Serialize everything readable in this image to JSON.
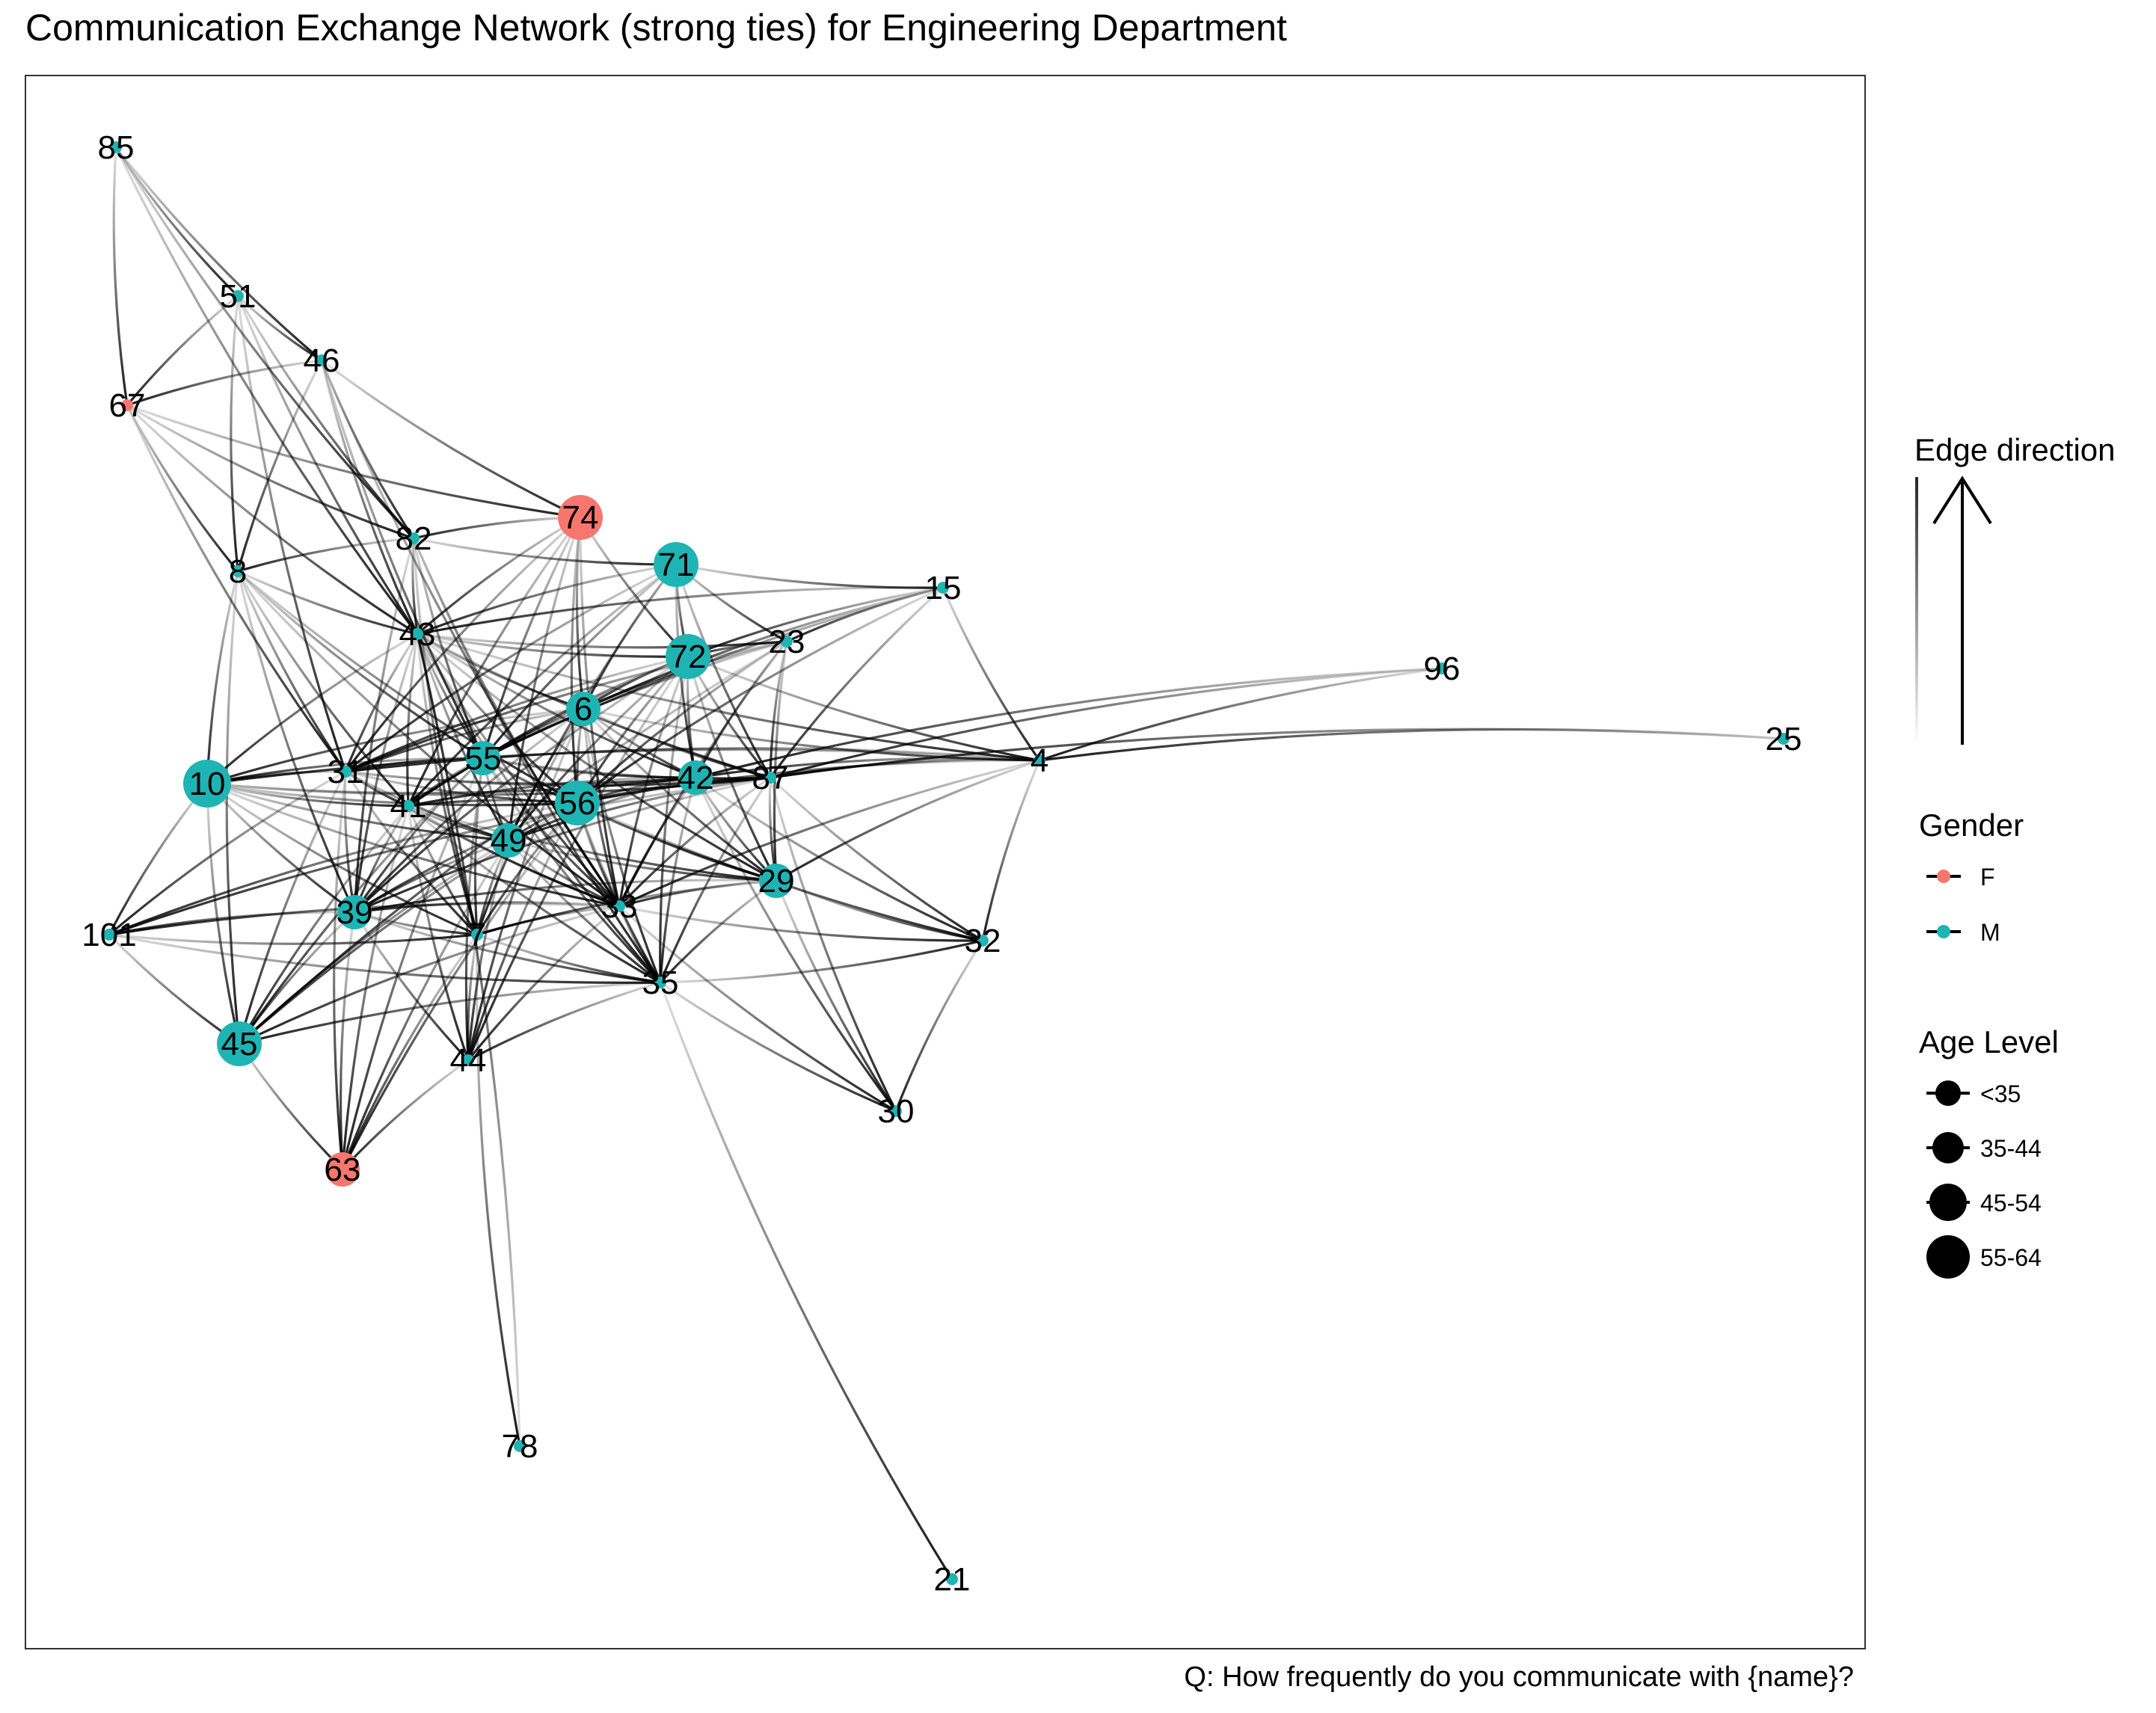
{
  "title": "Communication Exchange Network (strong ties) for Engineering Department",
  "caption": "Q: How frequently do you communicate with {name}?",
  "colors": {
    "F": "#F8766D",
    "M": "#1FB4B4",
    "edge": "#000000",
    "panel_border": "#333333"
  },
  "legend": {
    "edge_direction_title": "Edge direction",
    "gender_title": "Gender",
    "gender_items": [
      "F",
      "M"
    ],
    "age_title": "Age Level",
    "age_items": [
      "<35",
      "35-44",
      "45-54",
      "55-64"
    ]
  },
  "nodes": [
    {
      "id": "85",
      "gender": "M",
      "age": "<35"
    },
    {
      "id": "51",
      "gender": "M",
      "age": "<35"
    },
    {
      "id": "46",
      "gender": "M",
      "age": "<35"
    },
    {
      "id": "67",
      "gender": "F",
      "age": "<35"
    },
    {
      "id": "74",
      "gender": "F",
      "age": "45-54"
    },
    {
      "id": "82",
      "gender": "M",
      "age": "<35"
    },
    {
      "id": "71",
      "gender": "M",
      "age": "45-54"
    },
    {
      "id": "15",
      "gender": "M",
      "age": "<35"
    },
    {
      "id": "8",
      "gender": "M",
      "age": "<35"
    },
    {
      "id": "43",
      "gender": "M",
      "age": "<35"
    },
    {
      "id": "23",
      "gender": "M",
      "age": "<35"
    },
    {
      "id": "72",
      "gender": "M",
      "age": "45-54"
    },
    {
      "id": "96",
      "gender": "M",
      "age": "<35"
    },
    {
      "id": "6",
      "gender": "M",
      "age": "35-44"
    },
    {
      "id": "25",
      "gender": "M",
      "age": "<35"
    },
    {
      "id": "4",
      "gender": "M",
      "age": "<35"
    },
    {
      "id": "55",
      "gender": "M",
      "age": "35-44"
    },
    {
      "id": "31",
      "gender": "M",
      "age": "<35"
    },
    {
      "id": "10",
      "gender": "M",
      "age": "55-64"
    },
    {
      "id": "42",
      "gender": "M",
      "age": "35-44"
    },
    {
      "id": "87",
      "gender": "M",
      "age": "<35"
    },
    {
      "id": "56",
      "gender": "M",
      "age": "45-54"
    },
    {
      "id": "41",
      "gender": "M",
      "age": "<35"
    },
    {
      "id": "49",
      "gender": "M",
      "age": "35-44"
    },
    {
      "id": "29",
      "gender": "M",
      "age": "35-44"
    },
    {
      "id": "33",
      "gender": "M",
      "age": "<35"
    },
    {
      "id": "39",
      "gender": "M",
      "age": "35-44"
    },
    {
      "id": "101",
      "gender": "M",
      "age": "<35"
    },
    {
      "id": "7",
      "gender": "M",
      "age": "<35"
    },
    {
      "id": "32",
      "gender": "M",
      "age": "<35"
    },
    {
      "id": "35",
      "gender": "M",
      "age": "<35"
    },
    {
      "id": "45",
      "gender": "M",
      "age": "45-54"
    },
    {
      "id": "44",
      "gender": "M",
      "age": "<35"
    },
    {
      "id": "30",
      "gender": "M",
      "age": "<35"
    },
    {
      "id": "63",
      "gender": "F",
      "age": "35-44"
    },
    {
      "id": "78",
      "gender": "M",
      "age": "<35"
    },
    {
      "id": "21",
      "gender": "M",
      "age": "<35"
    }
  ],
  "edges": [
    [
      "85",
      "51"
    ],
    [
      "85",
      "46"
    ],
    [
      "85",
      "67"
    ],
    [
      "85",
      "82"
    ],
    [
      "85",
      "43"
    ],
    [
      "51",
      "46"
    ],
    [
      "51",
      "67"
    ],
    [
      "51",
      "43"
    ],
    [
      "51",
      "8"
    ],
    [
      "51",
      "82"
    ],
    [
      "51",
      "31"
    ],
    [
      "46",
      "67"
    ],
    [
      "46",
      "43"
    ],
    [
      "46",
      "82"
    ],
    [
      "46",
      "74"
    ],
    [
      "46",
      "8"
    ],
    [
      "46",
      "55"
    ],
    [
      "46",
      "33"
    ],
    [
      "67",
      "8"
    ],
    [
      "67",
      "82"
    ],
    [
      "67",
      "43"
    ],
    [
      "67",
      "74"
    ],
    [
      "67",
      "31"
    ],
    [
      "74",
      "82"
    ],
    [
      "74",
      "43"
    ],
    [
      "74",
      "6"
    ],
    [
      "74",
      "72"
    ],
    [
      "74",
      "55"
    ],
    [
      "74",
      "56"
    ],
    [
      "74",
      "31"
    ],
    [
      "74",
      "41"
    ],
    [
      "74",
      "33"
    ],
    [
      "74",
      "49"
    ],
    [
      "82",
      "8"
    ],
    [
      "82",
      "43"
    ],
    [
      "82",
      "71"
    ],
    [
      "82",
      "55"
    ],
    [
      "82",
      "39"
    ],
    [
      "82",
      "7"
    ],
    [
      "82",
      "33"
    ],
    [
      "82",
      "35"
    ],
    [
      "71",
      "72"
    ],
    [
      "71",
      "6"
    ],
    [
      "71",
      "55"
    ],
    [
      "71",
      "15"
    ],
    [
      "71",
      "23"
    ],
    [
      "71",
      "42"
    ],
    [
      "71",
      "43"
    ],
    [
      "71",
      "31"
    ],
    [
      "71",
      "41"
    ],
    [
      "71",
      "49"
    ],
    [
      "71",
      "87"
    ],
    [
      "15",
      "72"
    ],
    [
      "15",
      "23"
    ],
    [
      "15",
      "55"
    ],
    [
      "15",
      "6"
    ],
    [
      "15",
      "87"
    ],
    [
      "15",
      "4"
    ],
    [
      "15",
      "43"
    ],
    [
      "15",
      "56"
    ],
    [
      "8",
      "43"
    ],
    [
      "8",
      "10"
    ],
    [
      "8",
      "31"
    ],
    [
      "8",
      "55"
    ],
    [
      "8",
      "56"
    ],
    [
      "8",
      "33"
    ],
    [
      "8",
      "39"
    ],
    [
      "8",
      "45"
    ],
    [
      "8",
      "41"
    ],
    [
      "43",
      "72"
    ],
    [
      "43",
      "6"
    ],
    [
      "43",
      "55"
    ],
    [
      "43",
      "56"
    ],
    [
      "43",
      "31"
    ],
    [
      "43",
      "10"
    ],
    [
      "43",
      "41"
    ],
    [
      "43",
      "49"
    ],
    [
      "43",
      "39"
    ],
    [
      "43",
      "33"
    ],
    [
      "43",
      "35"
    ],
    [
      "43",
      "42"
    ],
    [
      "43",
      "87"
    ],
    [
      "43",
      "29"
    ],
    [
      "43",
      "7"
    ],
    [
      "43",
      "23"
    ],
    [
      "43",
      "4"
    ],
    [
      "23",
      "72"
    ],
    [
      "23",
      "6"
    ],
    [
      "23",
      "55"
    ],
    [
      "23",
      "42"
    ],
    [
      "23",
      "87"
    ],
    [
      "23",
      "29"
    ],
    [
      "23",
      "56"
    ],
    [
      "23",
      "31"
    ],
    [
      "23",
      "33"
    ],
    [
      "23",
      "45"
    ],
    [
      "72",
      "6"
    ],
    [
      "72",
      "55"
    ],
    [
      "72",
      "56"
    ],
    [
      "72",
      "42"
    ],
    [
      "72",
      "87"
    ],
    [
      "72",
      "31"
    ],
    [
      "72",
      "41"
    ],
    [
      "72",
      "49"
    ],
    [
      "72",
      "39"
    ],
    [
      "72",
      "33"
    ],
    [
      "72",
      "29"
    ],
    [
      "72",
      "4"
    ],
    [
      "72",
      "35"
    ],
    [
      "72",
      "44"
    ],
    [
      "96",
      "87"
    ],
    [
      "96",
      "4"
    ],
    [
      "96",
      "42"
    ],
    [
      "6",
      "55"
    ],
    [
      "6",
      "56"
    ],
    [
      "6",
      "42"
    ],
    [
      "6",
      "87"
    ],
    [
      "6",
      "31"
    ],
    [
      "6",
      "41"
    ],
    [
      "6",
      "49"
    ],
    [
      "6",
      "33"
    ],
    [
      "6",
      "29"
    ],
    [
      "6",
      "35"
    ],
    [
      "6",
      "39"
    ],
    [
      "6",
      "10"
    ],
    [
      "6",
      "7"
    ],
    [
      "6",
      "44"
    ],
    [
      "6",
      "4"
    ],
    [
      "25",
      "87"
    ],
    [
      "25",
      "4"
    ],
    [
      "4",
      "87"
    ],
    [
      "4",
      "42"
    ],
    [
      "4",
      "29"
    ],
    [
      "4",
      "32"
    ],
    [
      "4",
      "56"
    ],
    [
      "4",
      "33"
    ],
    [
      "4",
      "31"
    ],
    [
      "4",
      "10"
    ],
    [
      "55",
      "56"
    ],
    [
      "55",
      "31"
    ],
    [
      "55",
      "41"
    ],
    [
      "55",
      "49"
    ],
    [
      "55",
      "42"
    ],
    [
      "55",
      "87"
    ],
    [
      "55",
      "33"
    ],
    [
      "55",
      "29"
    ],
    [
      "55",
      "35"
    ],
    [
      "55",
      "39"
    ],
    [
      "55",
      "10"
    ],
    [
      "55",
      "7"
    ],
    [
      "55",
      "44"
    ],
    [
      "55",
      "45"
    ],
    [
      "55",
      "63"
    ],
    [
      "31",
      "10"
    ],
    [
      "31",
      "41"
    ],
    [
      "31",
      "39"
    ],
    [
      "31",
      "56"
    ],
    [
      "31",
      "49"
    ],
    [
      "31",
      "33"
    ],
    [
      "31",
      "101"
    ],
    [
      "31",
      "45"
    ],
    [
      "31",
      "7"
    ],
    [
      "31",
      "63"
    ],
    [
      "31",
      "42"
    ],
    [
      "31",
      "87"
    ],
    [
      "10",
      "41"
    ],
    [
      "10",
      "56"
    ],
    [
      "10",
      "39"
    ],
    [
      "10",
      "33"
    ],
    [
      "10",
      "101"
    ],
    [
      "10",
      "45"
    ],
    [
      "10",
      "49"
    ],
    [
      "10",
      "87"
    ],
    [
      "10",
      "42"
    ],
    [
      "10",
      "7"
    ],
    [
      "42",
      "87"
    ],
    [
      "42",
      "56"
    ],
    [
      "42",
      "29"
    ],
    [
      "42",
      "33"
    ],
    [
      "42",
      "35"
    ],
    [
      "42",
      "32"
    ],
    [
      "42",
      "30"
    ],
    [
      "42",
      "49"
    ],
    [
      "42",
      "41"
    ],
    [
      "87",
      "56"
    ],
    [
      "87",
      "29"
    ],
    [
      "87",
      "33"
    ],
    [
      "87",
      "35"
    ],
    [
      "87",
      "32"
    ],
    [
      "87",
      "49"
    ],
    [
      "87",
      "39"
    ],
    [
      "87",
      "101"
    ],
    [
      "87",
      "30"
    ],
    [
      "56",
      "41"
    ],
    [
      "56",
      "49"
    ],
    [
      "56",
      "29"
    ],
    [
      "56",
      "33"
    ],
    [
      "56",
      "35"
    ],
    [
      "56",
      "39"
    ],
    [
      "56",
      "7"
    ],
    [
      "56",
      "44"
    ],
    [
      "56",
      "45"
    ],
    [
      "56",
      "101"
    ],
    [
      "56",
      "32"
    ],
    [
      "56",
      "63"
    ],
    [
      "41",
      "49"
    ],
    [
      "41",
      "39"
    ],
    [
      "41",
      "33"
    ],
    [
      "41",
      "7"
    ],
    [
      "41",
      "44"
    ],
    [
      "41",
      "45"
    ],
    [
      "41",
      "63"
    ],
    [
      "41",
      "35"
    ],
    [
      "41",
      "29"
    ],
    [
      "49",
      "29"
    ],
    [
      "49",
      "33"
    ],
    [
      "49",
      "39"
    ],
    [
      "49",
      "7"
    ],
    [
      "49",
      "44"
    ],
    [
      "49",
      "35"
    ],
    [
      "49",
      "45"
    ],
    [
      "49",
      "63"
    ],
    [
      "29",
      "33"
    ],
    [
      "29",
      "35"
    ],
    [
      "29",
      "39"
    ],
    [
      "29",
      "32"
    ],
    [
      "29",
      "30"
    ],
    [
      "29",
      "7"
    ],
    [
      "33",
      "39"
    ],
    [
      "33",
      "7"
    ],
    [
      "33",
      "35"
    ],
    [
      "33",
      "30"
    ],
    [
      "33",
      "32"
    ],
    [
      "33",
      "101"
    ],
    [
      "33",
      "44"
    ],
    [
      "33",
      "45"
    ],
    [
      "39",
      "101"
    ],
    [
      "39",
      "7"
    ],
    [
      "39",
      "44"
    ],
    [
      "39",
      "45"
    ],
    [
      "39",
      "63"
    ],
    [
      "39",
      "35"
    ],
    [
      "101",
      "7"
    ],
    [
      "101",
      "45"
    ],
    [
      "101",
      "35"
    ],
    [
      "7",
      "44"
    ],
    [
      "7",
      "63"
    ],
    [
      "7",
      "78"
    ],
    [
      "7",
      "35"
    ],
    [
      "35",
      "45"
    ],
    [
      "35",
      "44"
    ],
    [
      "35",
      "30"
    ],
    [
      "35",
      "21"
    ],
    [
      "35",
      "32"
    ],
    [
      "45",
      "63"
    ],
    [
      "44",
      "63"
    ],
    [
      "32",
      "30"
    ],
    [
      "78",
      "43"
    ]
  ]
}
